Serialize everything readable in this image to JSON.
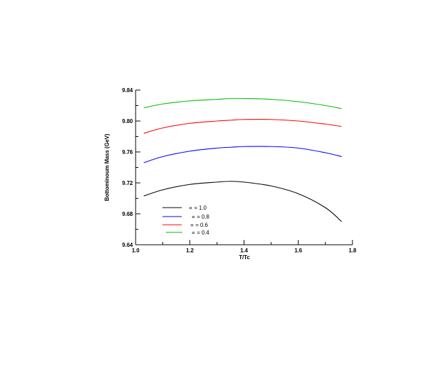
{
  "chart_data": {
    "type": "line",
    "xlabel": "T/Tc",
    "ylabel": "Bottominoum Mass (GeV)",
    "xlim": [
      1.0,
      1.8
    ],
    "ylim": [
      9.64,
      9.84
    ],
    "xticks": [
      "1.0",
      "1.2",
      "1.4",
      "1.6",
      "1.8"
    ],
    "yticks": [
      "9.64",
      "9.68",
      "9.72",
      "9.76",
      "9.80",
      "9.84"
    ],
    "grid": false,
    "legend_position": "bottom-left",
    "x": [
      1.03,
      1.1,
      1.2,
      1.3,
      1.35,
      1.4,
      1.5,
      1.6,
      1.7,
      1.76
    ],
    "series": [
      {
        "name": "∝ = 1.0",
        "color": "#000000",
        "values": [
          9.703,
          9.711,
          9.718,
          9.721,
          9.722,
          9.721,
          9.716,
          9.706,
          9.688,
          9.67
        ]
      },
      {
        "name": "∝ = 0.8",
        "color": "#0000ff",
        "values": [
          9.746,
          9.754,
          9.761,
          9.765,
          9.766,
          9.767,
          9.767,
          9.765,
          9.759,
          9.754
        ]
      },
      {
        "name": "∝ = 0.6",
        "color": "#ff0000",
        "values": [
          9.784,
          9.791,
          9.797,
          9.8,
          9.801,
          9.802,
          9.802,
          9.8,
          9.796,
          9.793
        ]
      },
      {
        "name": "∝ = 0.4",
        "color": "#00bb00",
        "values": [
          9.817,
          9.822,
          9.826,
          9.828,
          9.829,
          9.829,
          9.828,
          9.825,
          9.82,
          9.816
        ]
      }
    ]
  }
}
